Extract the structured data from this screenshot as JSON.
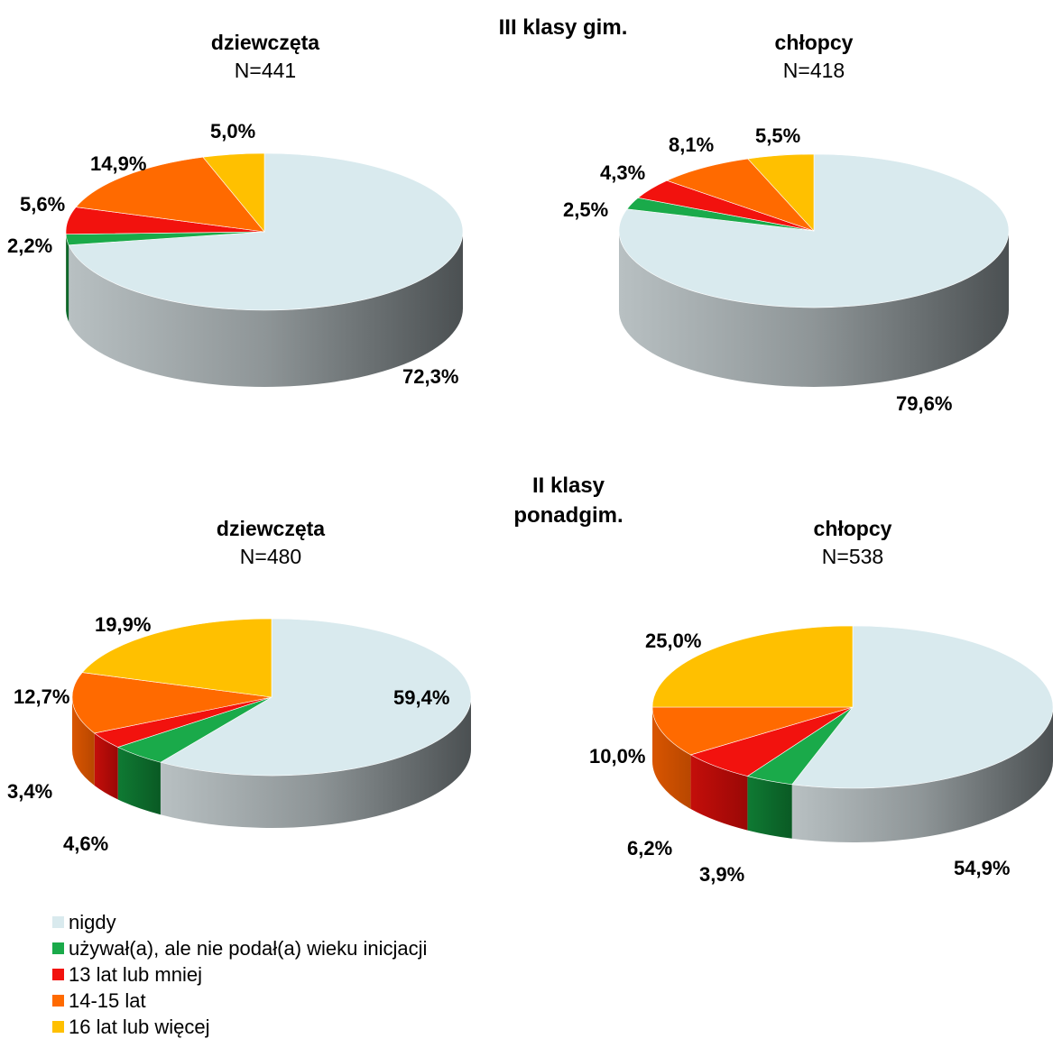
{
  "chart_data": {
    "type": "pie",
    "categories": [
      "nigdy",
      "używał(a), ale nie podał(a) wieku inicjacji",
      "13 lat lub mniej",
      "14-15 lat",
      "16 lat lub więcej"
    ],
    "colors": [
      "#D9EAEE",
      "#1AAA4A",
      "#F2120E",
      "#FF6A00",
      "#FFC000"
    ],
    "legend_position": "bottom-left",
    "groups": [
      {
        "title": "III klasy gim.",
        "pies": [
          {
            "title": "dziewczęta",
            "n": "N=441",
            "values": [
              72.3,
              2.2,
              5.6,
              14.9,
              5.0
            ],
            "labels": [
              "72,3%",
              "2,2%",
              "5,6%",
              "14,9%",
              "5,0%"
            ]
          },
          {
            "title": "chłopcy",
            "n": "N=418",
            "values": [
              79.6,
              2.5,
              4.3,
              8.1,
              5.5
            ],
            "labels": [
              "79,6%",
              "2,5%",
              "4,3%",
              "8,1%",
              "5,5%"
            ]
          }
        ]
      },
      {
        "title": "II klasy ponadgim.",
        "title_lines": [
          "II klasy",
          "ponadgim."
        ],
        "pies": [
          {
            "title": "dziewczęta",
            "n": "N=480",
            "values": [
              59.4,
              4.6,
              3.4,
              12.7,
              19.9
            ],
            "labels": [
              "59,4%",
              "4,6%",
              "3,4%",
              "12,7%",
              "19,9%"
            ]
          },
          {
            "title": "chłopcy",
            "n": "N=538",
            "values": [
              54.9,
              3.9,
              6.2,
              10.0,
              25.0
            ],
            "labels": [
              "54,9%",
              "3,9%",
              "6,2%",
              "10,0%",
              "25,0%"
            ]
          }
        ]
      }
    ]
  }
}
